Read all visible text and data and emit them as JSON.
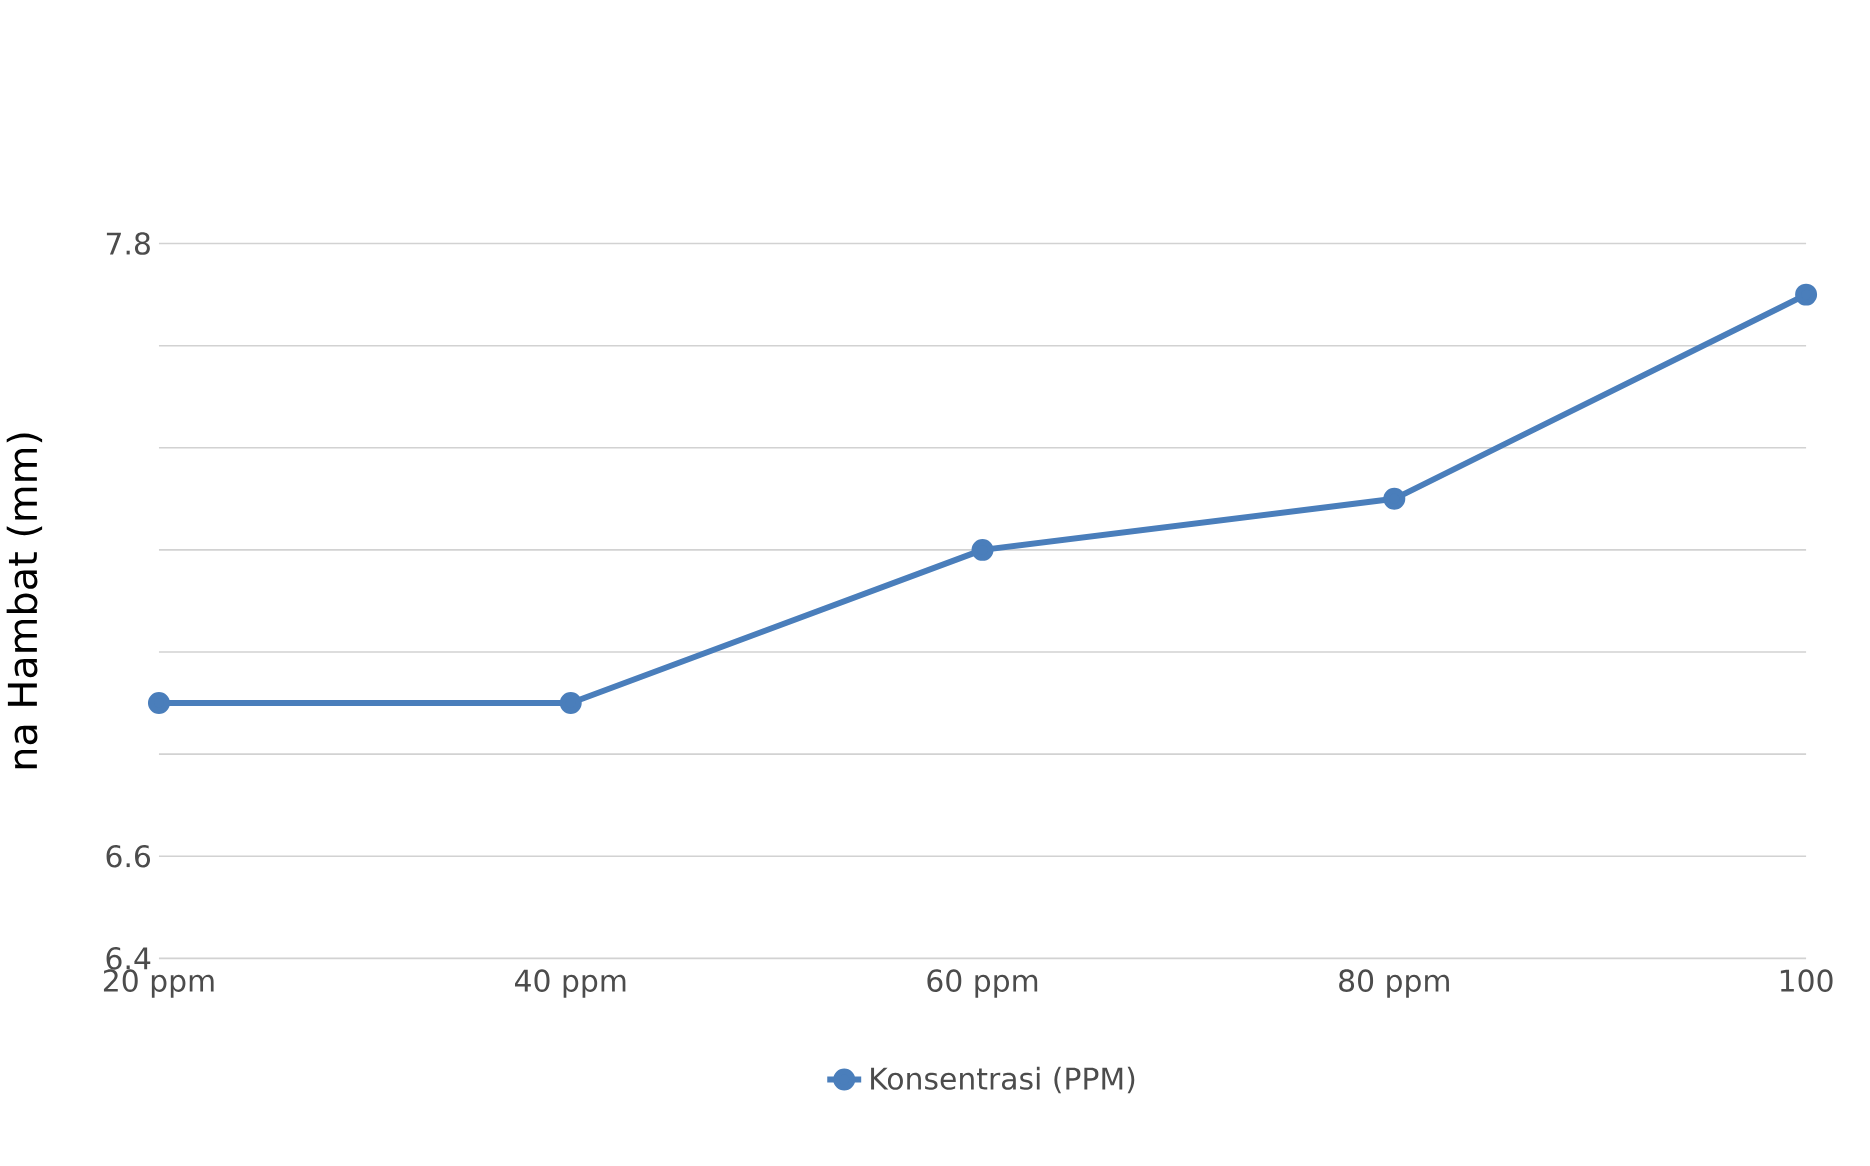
{
  "chart_data": {
    "type": "line",
    "ylabel": "na Hambat (mm)",
    "categories": [
      "20 ppm",
      "40 ppm",
      "60 ppm",
      "80 ppm",
      "100"
    ],
    "series": [
      {
        "name": "Konsentrasi (PPM)",
        "color": "#4a7ebb",
        "values": [
          6.9,
          6.9,
          7.2,
          7.3,
          7.7
        ]
      }
    ],
    "ylim": [
      6.4,
      7.8
    ],
    "yticks": [
      6.4,
      6.6,
      {
        "value": 6.8,
        "label": null
      },
      {
        "value": 7.0,
        "label": null
      },
      {
        "value": 7.2,
        "label": null
      },
      {
        "value": 7.4,
        "label": null
      },
      {
        "value": 7.6,
        "label": null
      },
      7.8
    ],
    "grid": "y",
    "legend": "bottom",
    "marker": "circle",
    "line_style": "solid"
  }
}
